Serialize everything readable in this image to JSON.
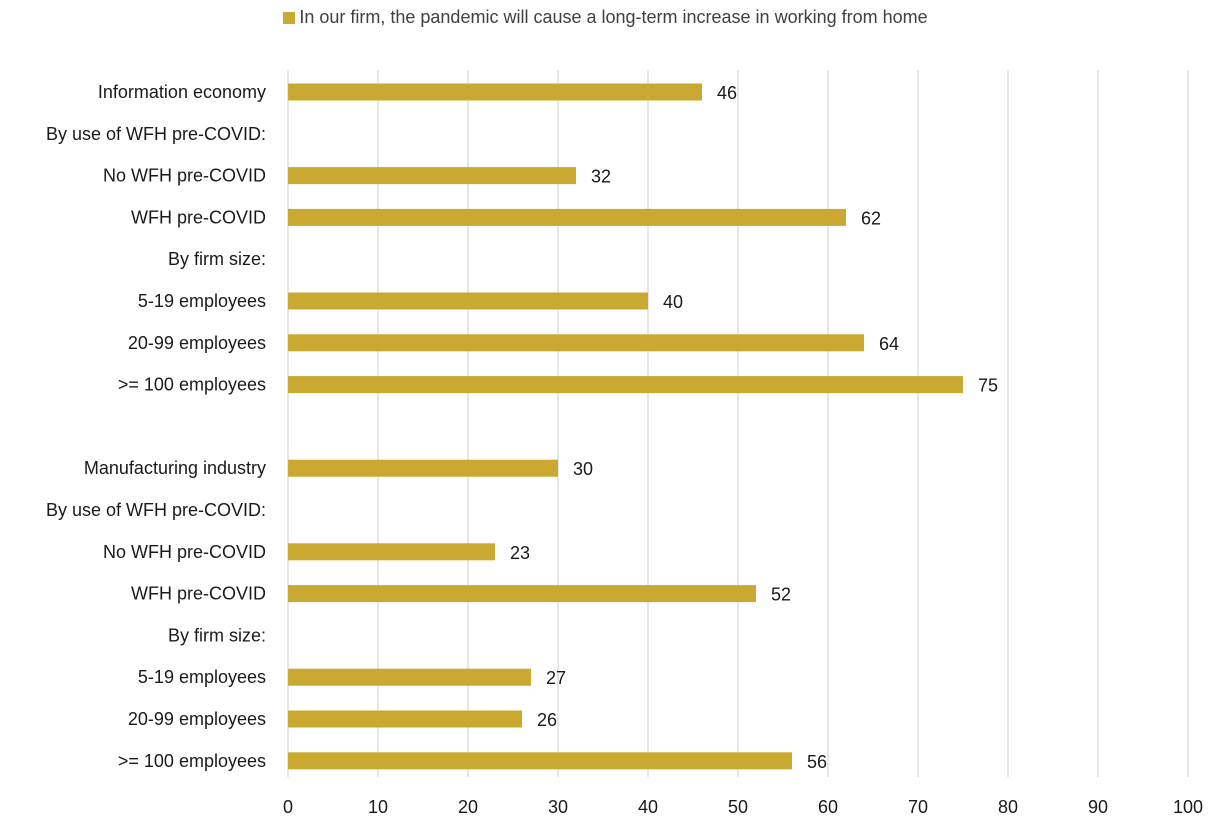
{
  "chart_data": {
    "type": "bar",
    "orientation": "horizontal",
    "legend": {
      "position": "top",
      "label": "In our firm, the pandemic will cause a long-term increase in working from home"
    },
    "colors": {
      "bar": "#C9A931",
      "grid": "#D9D9D9",
      "text": "#1a1a1a"
    },
    "grid": true,
    "xlim": [
      0,
      100
    ],
    "xticks": [
      "0",
      "10",
      "20",
      "30",
      "40",
      "50",
      "60",
      "70",
      "80",
      "90",
      "100"
    ],
    "categories": [
      "Information economy",
      "By use of WFH pre-COVID:",
      "No WFH pre-COVID",
      "WFH pre-COVID",
      "By firm size:",
      "5-19 employees",
      "20-99 employees",
      ">= 100 employees",
      "",
      "Manufacturing industry",
      "By use of WFH pre-COVID:",
      "No WFH pre-COVID",
      "WFH pre-COVID",
      "By firm size:",
      "5-19 employees",
      "20-99 employees",
      ">= 100 employees"
    ],
    "series": [
      {
        "name": "In our firm, the pandemic will cause a long-term increase in working from home",
        "values": [
          46,
          null,
          32,
          62,
          null,
          40,
          64,
          75,
          null,
          30,
          null,
          23,
          52,
          null,
          27,
          26,
          56
        ]
      }
    ]
  }
}
